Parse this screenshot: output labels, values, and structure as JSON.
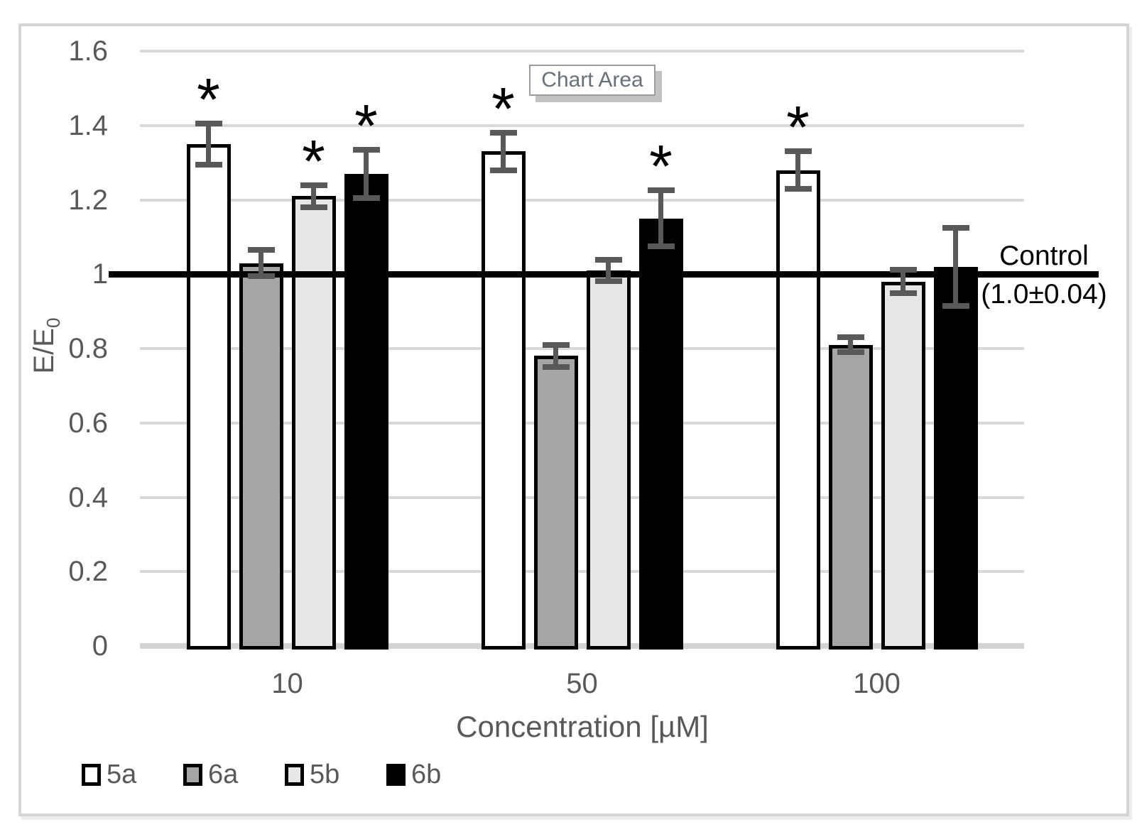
{
  "tooltip": {
    "label": "Chart Area"
  },
  "chart_data": {
    "type": "bar",
    "title": "",
    "categories": [
      "10",
      "50",
      "100"
    ],
    "xlabel": "Concentration [µM]",
    "ylabel": "E/E₀",
    "ylabel_parts": {
      "base": "E/E",
      "sub": "0"
    },
    "ylim": [
      0,
      1.6
    ],
    "ytick_step": 0.2,
    "yticks": [
      "1.6",
      "1.4",
      "1.2",
      "1",
      "0.8",
      "0.6",
      "0.4",
      "0.2",
      "0"
    ],
    "grid": true,
    "legend_position": "bottom-left",
    "significance_marker": "*",
    "series": [
      {
        "name": "5a",
        "fill": "#ffffff",
        "values": [
          1.35,
          1.33,
          1.28
        ],
        "errors": [
          0.055,
          0.05,
          0.05
        ],
        "significant": [
          true,
          true,
          true
        ]
      },
      {
        "name": "6a",
        "fill": "#a6a6a6",
        "values": [
          1.03,
          0.78,
          0.81
        ],
        "errors": [
          0.035,
          0.03,
          0.02
        ],
        "significant": [
          false,
          false,
          false
        ]
      },
      {
        "name": "5b",
        "fill": "#e8e7e7",
        "values": [
          1.21,
          1.01,
          0.98
        ],
        "errors": [
          0.03,
          0.028,
          0.032
        ],
        "significant": [
          true,
          false,
          false
        ]
      },
      {
        "name": "6b",
        "fill": "#000000",
        "values": [
          1.27,
          1.15,
          1.02
        ],
        "errors": [
          0.065,
          0.075,
          0.105
        ],
        "significant": [
          true,
          true,
          false
        ]
      }
    ],
    "control_line": {
      "value": 1.0,
      "label_line1": "Control",
      "label_line2": "(1.0±0.04)"
    },
    "colors": {
      "axis_text": "#595959",
      "gridline": "#d9d9d9",
      "error_bar": "#595959",
      "control_line": "#000000",
      "bar_border": "#000000"
    }
  }
}
